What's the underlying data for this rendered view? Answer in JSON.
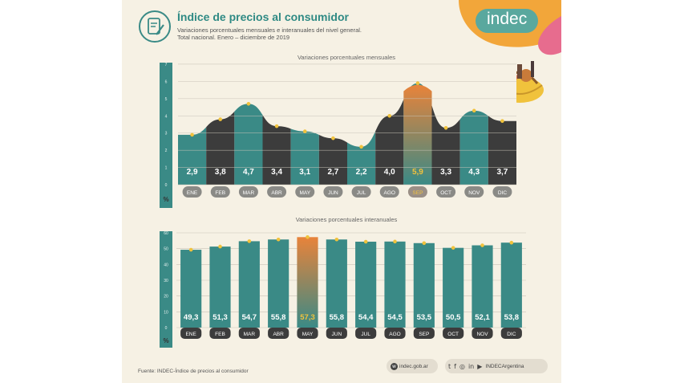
{
  "header": {
    "title": "Índice de precios al consumidor",
    "subtitle_line1": "Variaciones porcentuales mensuales e interanuales del nivel general.",
    "subtitle_line2": "Total nacional. Enero – diciembre de 2019",
    "logo": "indec"
  },
  "footer": {
    "source": "Fuente: INDEC-Índice de precios al consumidor",
    "website": "indec.gob.ar",
    "social_handle": "INDECArgentina"
  },
  "colors": {
    "teal": "#3a8a86",
    "dark": "#3c3c3c",
    "highlight_top": "#e8833a",
    "highlight_bottom": "#3a8a86",
    "highlight_label": "#f2c23c",
    "grid": "#c9c4b8",
    "background": "#f6f1e4"
  },
  "chart_data": [
    {
      "type": "area",
      "title": "Variaciones porcentuales mensuales",
      "ylabel": "%",
      "ylim": [
        0,
        7
      ],
      "yticks": [
        "0",
        "1",
        "2",
        "3",
        "4",
        "5",
        "6",
        "7"
      ],
      "categories": [
        "ENE",
        "FEB",
        "MAR",
        "ABR",
        "MAY",
        "JUN",
        "JUL",
        "AGO",
        "SEP",
        "OCT",
        "NOV",
        "DIC"
      ],
      "values": [
        2.9,
        3.8,
        4.7,
        3.4,
        3.1,
        2.7,
        2.2,
        4.0,
        5.9,
        3.3,
        4.3,
        3.7
      ],
      "labels": [
        "2,9",
        "3,8",
        "4,7",
        "3,4",
        "3,1",
        "2,7",
        "2,2",
        "4,0",
        "5,9",
        "3,3",
        "4,3",
        "3,7"
      ],
      "highlight": "SEP",
      "grid": true
    },
    {
      "type": "bar",
      "title": "Variaciones porcentuales interanuales",
      "ylabel": "%",
      "ylim": [
        0,
        60
      ],
      "yticks": [
        "0",
        "10",
        "20",
        "30",
        "40",
        "50",
        "60"
      ],
      "categories": [
        "ENE",
        "FEB",
        "MAR",
        "ABR",
        "MAY",
        "JUN",
        "JUL",
        "AGO",
        "SEP",
        "OCT",
        "NOV",
        "DIC"
      ],
      "values": [
        49.3,
        51.3,
        54.7,
        55.8,
        57.3,
        55.8,
        54.4,
        54.5,
        53.5,
        50.5,
        52.1,
        53.8
      ],
      "labels": [
        "49,3",
        "51,3",
        "54,7",
        "55,8",
        "57,3",
        "55,8",
        "54,4",
        "54,5",
        "53,5",
        "50,5",
        "52,1",
        "53,8"
      ],
      "highlight": "MAY",
      "grid": true
    }
  ]
}
